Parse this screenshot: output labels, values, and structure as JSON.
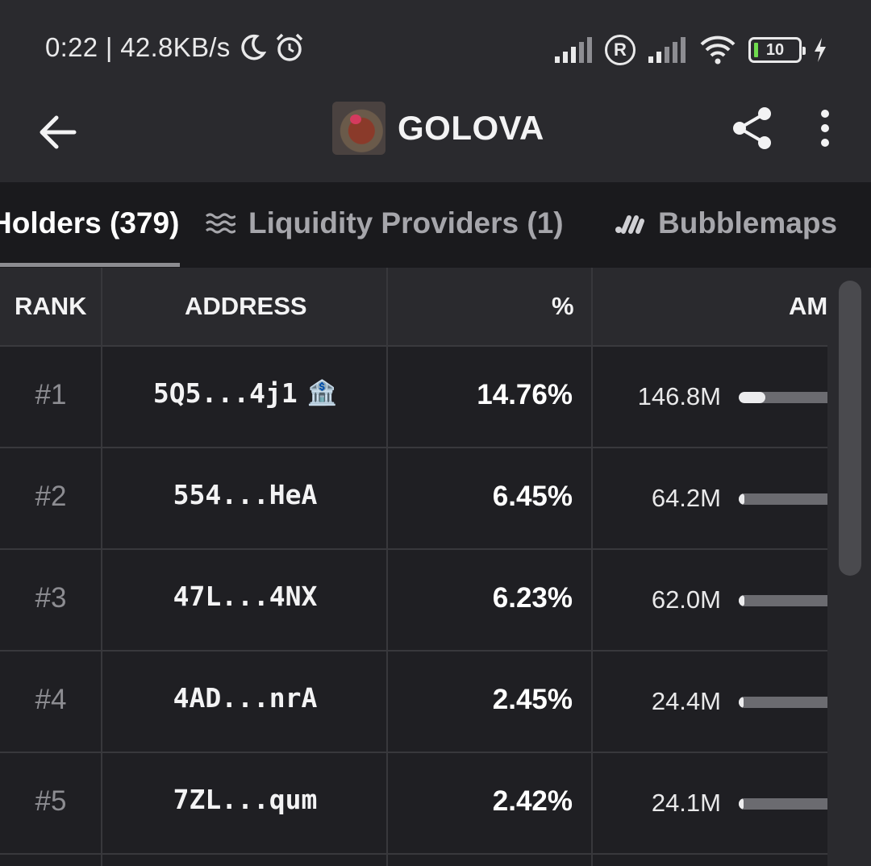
{
  "status": {
    "time_speed": "0:22 | 42.8KB/s",
    "battery": "10"
  },
  "header": {
    "title": "GOLOVA"
  },
  "tabs": [
    {
      "label": "Holders (379)"
    },
    {
      "label": "Liquidity Providers (1)"
    },
    {
      "label": "Bubblemaps"
    }
  ],
  "table": {
    "columns": {
      "rank": "RANK",
      "address": "ADDRESS",
      "percent": "%",
      "amount": "AMOUNT"
    },
    "rows": [
      {
        "rank": "#1",
        "address": "5Q5...4j1",
        "badge": "🏦",
        "percent": "14.76%",
        "amount": "146.8M",
        "share": 0.3
      },
      {
        "rank": "#2",
        "address": "554...HeA",
        "percent": "6.45%",
        "amount": "64.2M",
        "share": 0.06
      },
      {
        "rank": "#3",
        "address": "47L...4NX",
        "percent": "6.23%",
        "amount": "62.0M",
        "share": 0.06
      },
      {
        "rank": "#4",
        "address": "4AD...nrA",
        "percent": "2.45%",
        "amount": "24.4M",
        "share": 0.05
      },
      {
        "rank": "#5",
        "address": "7ZL...qum",
        "percent": "2.42%",
        "amount": "24.1M",
        "share": 0.05
      }
    ]
  }
}
